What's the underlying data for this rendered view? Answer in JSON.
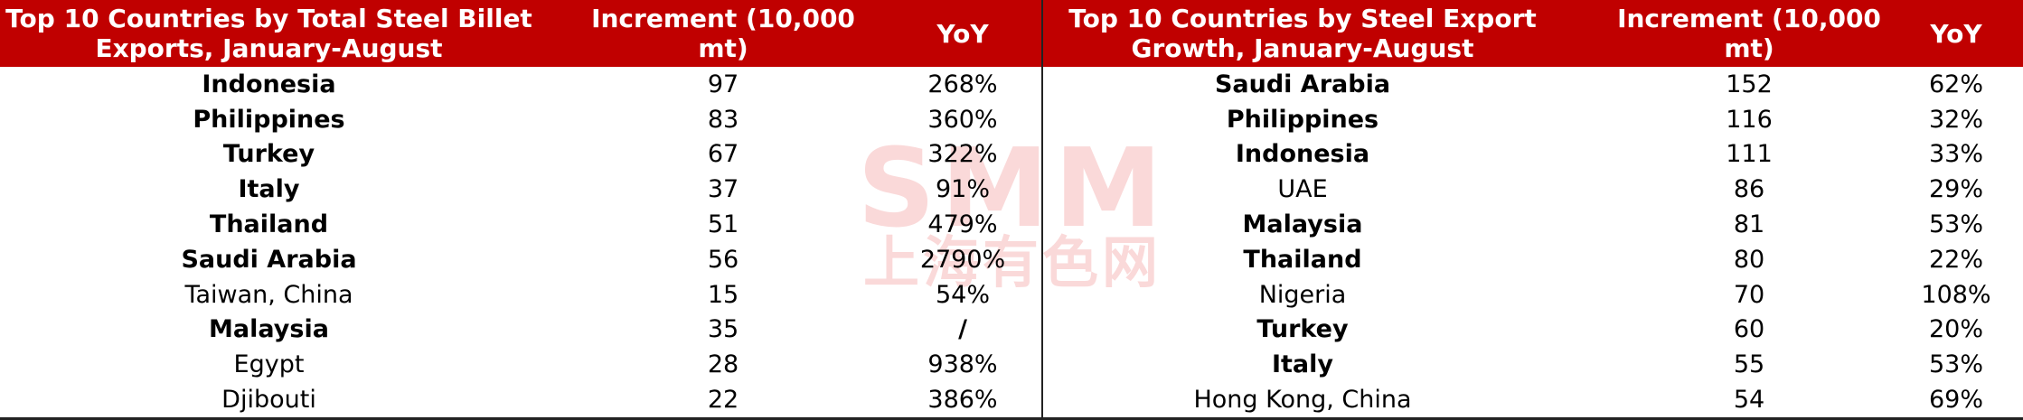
{
  "watermark": {
    "logo": "SMM",
    "name": "上海有色网"
  },
  "tables": [
    {
      "header": {
        "title": "Top 10 Countries by Total Steel Billet Exports, January-August",
        "increment": "Increment (10,000 mt)",
        "yoy": "YoY"
      },
      "rows": [
        {
          "country": "Indonesia",
          "increment": 97,
          "yoy": "268%",
          "bold": true
        },
        {
          "country": "Philippines",
          "increment": 83,
          "yoy": "360%",
          "bold": true
        },
        {
          "country": "Turkey",
          "increment": 67,
          "yoy": "322%",
          "bold": true
        },
        {
          "country": "Italy",
          "increment": 37,
          "yoy": "91%",
          "bold": true
        },
        {
          "country": "Thailand",
          "increment": 51,
          "yoy": "479%",
          "bold": true
        },
        {
          "country": "Saudi Arabia",
          "increment": 56,
          "yoy": "2790%",
          "bold": true
        },
        {
          "country": "Taiwan, China",
          "increment": 15,
          "yoy": "54%",
          "bold": false
        },
        {
          "country": "Malaysia",
          "increment": 35,
          "yoy": "/",
          "bold": true
        },
        {
          "country": "Egypt",
          "increment": 28,
          "yoy": "938%",
          "bold": false
        },
        {
          "country": "Djibouti",
          "increment": 22,
          "yoy": "386%",
          "bold": false
        }
      ]
    },
    {
      "header": {
        "title": "Top 10 Countries by Steel Export Growth, January-August",
        "increment": "Increment (10,000 mt)",
        "yoy": "YoY"
      },
      "rows": [
        {
          "country": "Saudi Arabia",
          "increment": 152,
          "yoy": "62%",
          "bold": true
        },
        {
          "country": "Philippines",
          "increment": 116,
          "yoy": "32%",
          "bold": true
        },
        {
          "country": "Indonesia",
          "increment": 111,
          "yoy": "33%",
          "bold": true
        },
        {
          "country": "UAE",
          "increment": 86,
          "yoy": "29%",
          "bold": false
        },
        {
          "country": "Malaysia",
          "increment": 81,
          "yoy": "53%",
          "bold": true
        },
        {
          "country": "Thailand",
          "increment": 80,
          "yoy": "22%",
          "bold": true
        },
        {
          "country": "Nigeria",
          "increment": 70,
          "yoy": "108%",
          "bold": false
        },
        {
          "country": "Turkey",
          "increment": 60,
          "yoy": "20%",
          "bold": true
        },
        {
          "country": "Italy",
          "increment": 55,
          "yoy": "53%",
          "bold": true
        },
        {
          "country": "Hong Kong, China",
          "increment": 54,
          "yoy": "69%",
          "bold": false
        }
      ]
    }
  ]
}
